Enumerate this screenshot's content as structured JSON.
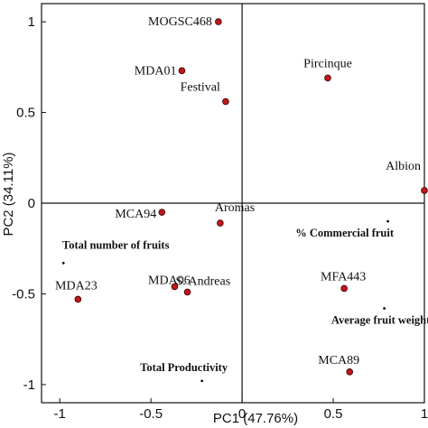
{
  "chart_data": {
    "type": "scatter",
    "xlabel": "PC1 (47.76%)",
    "ylabel": "PC2 (34.11%)",
    "xlim": [
      -1.1,
      1.0
    ],
    "ylim": [
      -1.1,
      1.1
    ],
    "x_ticks": [
      "-1",
      "-0.5",
      "0",
      "0.5",
      "1"
    ],
    "y_ticks": [
      "1",
      "0.5",
      "0",
      "-0.5",
      "-1"
    ],
    "grid": false,
    "point_color": "#c0161c",
    "genotypes": [
      {
        "label": "MOGSC468",
        "x": -0.13,
        "y": 1.0
      },
      {
        "label": "MDA01",
        "x": -0.33,
        "y": 0.73
      },
      {
        "label": "Festival",
        "x": -0.09,
        "y": 0.56
      },
      {
        "label": "Pircinque",
        "x": 0.47,
        "y": 0.69
      },
      {
        "label": "Albion",
        "x": 1.0,
        "y": 0.07
      },
      {
        "label": "MCA94",
        "x": -0.44,
        "y": -0.05
      },
      {
        "label": "Aromas",
        "x": -0.12,
        "y": -0.11
      },
      {
        "label": "MDA06",
        "x": -0.37,
        "y": -0.46
      },
      {
        "label": "S. Andreas",
        "x": -0.3,
        "y": -0.49
      },
      {
        "label": "MDA23",
        "x": -0.9,
        "y": -0.53
      },
      {
        "label": "MFA443",
        "x": 0.56,
        "y": -0.47
      },
      {
        "label": "MCA89",
        "x": 0.59,
        "y": -0.93
      }
    ],
    "variables": [
      {
        "label": "% Commercial fruit",
        "x": 0.8,
        "y": -0.1
      },
      {
        "label": "Total number of fruits",
        "x": -0.98,
        "y": -0.33
      },
      {
        "label": "Average fruit weight",
        "x": 0.78,
        "y": -0.58
      },
      {
        "label": "Total Productivity",
        "x": -0.22,
        "y": -0.98
      }
    ]
  }
}
